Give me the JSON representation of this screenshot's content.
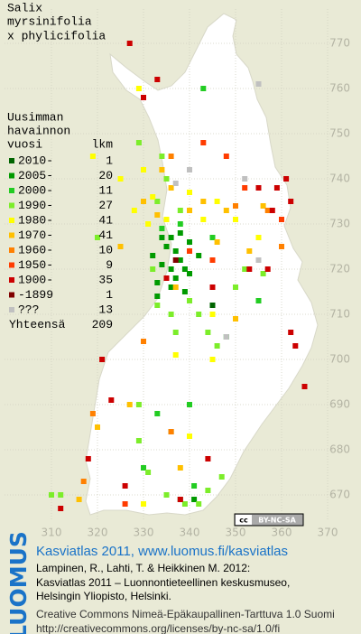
{
  "map": {
    "title": [
      "Salix",
      "myrsinifolia",
      "x phylicifolia"
    ],
    "legend": {
      "header": [
        "Uusimman",
        "havainnon",
        "vuosi"
      ],
      "count_header": "lkm",
      "items": [
        {
          "label": "2010-",
          "count": 1,
          "color": "#006400",
          "points": [
            [
              345,
              712
            ]
          ]
        },
        {
          "label": "2005-",
          "count": 20,
          "color": "#009a00",
          "points": [
            [
              335,
              725
            ],
            [
              337,
              724
            ],
            [
              338,
              722
            ],
            [
              339,
              720
            ],
            [
              336,
              727
            ],
            [
              334,
              721
            ],
            [
              340,
              726
            ],
            [
              337,
              718
            ],
            [
              333,
              717
            ],
            [
              339,
              715
            ],
            [
              341,
              669
            ],
            [
              338,
              669
            ],
            [
              333,
              714
            ],
            [
              336,
              716
            ],
            [
              342,
              723
            ],
            [
              332,
              723
            ],
            [
              336,
              720
            ],
            [
              334,
              727
            ],
            [
              340,
              719
            ],
            [
              338,
              728
            ]
          ]
        },
        {
          "label": "2000-",
          "count": 11,
          "color": "#22cc22",
          "points": [
            [
              334,
              729
            ],
            [
              336,
              684
            ],
            [
              330,
              676
            ],
            [
              333,
              688
            ],
            [
              340,
              690
            ],
            [
              348,
              705
            ],
            [
              355,
              713
            ],
            [
              343,
              760
            ],
            [
              338,
              730
            ],
            [
              345,
              727
            ],
            [
              341,
              672
            ]
          ]
        },
        {
          "label": "1990-",
          "count": 27,
          "color": "#7ced2a",
          "points": [
            [
              344,
              706
            ],
            [
              333,
              712
            ],
            [
              320,
              727
            ],
            [
              332,
              720
            ],
            [
              340,
              713
            ],
            [
              329,
              690
            ],
            [
              346,
              703
            ],
            [
              342,
              710
            ],
            [
              337,
              706
            ],
            [
              350,
              716
            ],
            [
              356,
              719
            ],
            [
              329,
              748
            ],
            [
              335,
              740
            ],
            [
              338,
              733
            ],
            [
              333,
              735
            ],
            [
              352,
              720
            ],
            [
              334,
              745
            ],
            [
              335,
              670
            ],
            [
              344,
              671
            ],
            [
              347,
              674
            ],
            [
              339,
              668
            ],
            [
              342,
              668
            ],
            [
              329,
              682
            ],
            [
              331,
              675
            ],
            [
              310,
              670
            ],
            [
              312,
              670
            ],
            [
              336,
              710
            ]
          ]
        },
        {
          "label": "1980-",
          "count": 41,
          "color": "#ffff00",
          "points": [
            [
              325,
              740
            ],
            [
              330,
              742
            ],
            [
              332,
              736
            ],
            [
              328,
              733
            ],
            [
              335,
              731
            ],
            [
              331,
              730
            ],
            [
              340,
              737
            ],
            [
              343,
              731
            ],
            [
              346,
              735
            ],
            [
              350,
              731
            ],
            [
              355,
              727
            ],
            [
              337,
              701
            ],
            [
              340,
              683
            ],
            [
              330,
              668
            ],
            [
              345,
              710
            ],
            [
              329,
              760
            ],
            [
              345,
              700
            ],
            [
              319,
              745
            ]
          ]
        },
        {
          "label": "1970-",
          "count": 41,
          "color": "#ffc000",
          "points": [
            [
              333,
              732
            ],
            [
              336,
              738
            ],
            [
              340,
              733
            ],
            [
              343,
              735
            ],
            [
              348,
              733
            ],
            [
              356,
              734
            ],
            [
              346,
              726
            ],
            [
              353,
              724
            ],
            [
              325,
              725
            ],
            [
              330,
              735
            ],
            [
              334,
              742
            ],
            [
              337,
              716
            ],
            [
              350,
              709
            ],
            [
              327,
              690
            ],
            [
              338,
              676
            ],
            [
              320,
              685
            ],
            [
              316,
              669
            ]
          ]
        },
        {
          "label": "1960-",
          "count": 10,
          "color": "#ff8000",
          "points": [
            [
              350,
              734
            ],
            [
              357,
              733
            ],
            [
              336,
              745
            ],
            [
              330,
              704
            ],
            [
              317,
              673
            ],
            [
              336,
              684
            ],
            [
              319,
              688
            ],
            [
              360,
              725
            ]
          ]
        },
        {
          "label": "1950-",
          "count": 9,
          "color": "#ff3c00",
          "points": [
            [
              345,
              722
            ],
            [
              352,
              738
            ],
            [
              340,
              724
            ],
            [
              326,
              668
            ],
            [
              360,
              731
            ],
            [
              348,
              745
            ],
            [
              343,
              748
            ]
          ]
        },
        {
          "label": "1900-",
          "count": 35,
          "color": "#cc0000",
          "points": [
            [
              355,
              738
            ],
            [
              358,
              733
            ],
            [
              361,
              740
            ],
            [
              357,
              720
            ],
            [
              353,
              720
            ],
            [
              362,
              706
            ],
            [
              363,
              703
            ],
            [
              365,
              694
            ],
            [
              321,
              700
            ],
            [
              323,
              691
            ],
            [
              318,
              678
            ],
            [
              326,
              672
            ],
            [
              312,
              667
            ],
            [
              338,
              669
            ],
            [
              344,
              678
            ],
            [
              335,
              718
            ],
            [
              330,
              758
            ],
            [
              333,
              762
            ],
            [
              327,
              770
            ],
            [
              359,
              738
            ],
            [
              362,
              735
            ],
            [
              345,
              716
            ]
          ]
        },
        {
          "label": "-1899",
          "count": 1,
          "color": "#800000",
          "points": [
            [
              337,
              722
            ]
          ]
        },
        {
          "label": "???",
          "count": 13,
          "color": "#c0c0c0",
          "points": [
            [
              355,
              761
            ],
            [
              337,
              739
            ],
            [
              352,
              740
            ],
            [
              355,
              722
            ],
            [
              348,
              705
            ],
            [
              340,
              742
            ]
          ]
        }
      ],
      "total_label": "Yhteensä",
      "total": 209
    },
    "xticks": [
      310,
      320,
      330,
      340,
      350,
      360,
      370
    ],
    "yticks": [
      770,
      760,
      750,
      740,
      730,
      720,
      710,
      700,
      690,
      680,
      670
    ],
    "badge": [
      "cc",
      "BY-NC-SA"
    ]
  },
  "footer": {
    "logo": "LUOMUS",
    "heading": "Kasviatlas 2011, www.luomus.fi/kasviatlas",
    "citation": [
      "Lampinen, R., Lahti, T. & Heikkinen M. 2012:",
      "Kasviatlas 2011 – Luonnontieteellinen keskusmuseo,",
      "Helsingin Yliopisto, Helsinki."
    ],
    "license": [
      "Creative Commons Nimeä-Epäkaupallinen-Tarttuva 1.0 Suomi",
      "http://creativecommons.org/licenses/by-nc-sa/1.0/fi"
    ]
  }
}
